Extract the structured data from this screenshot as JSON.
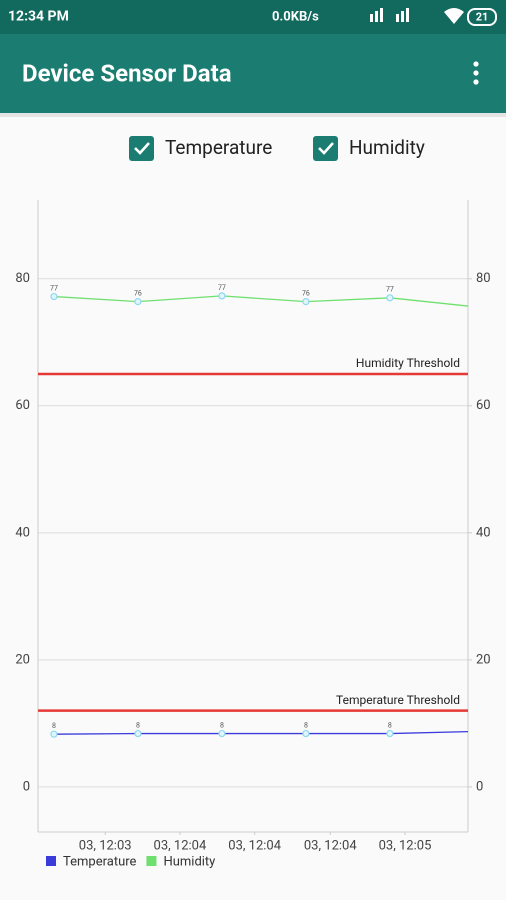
{
  "status_bar": {
    "time": "12:34 PM",
    "speed": "0.0KB/s",
    "battery": "21"
  },
  "app_bar": {
    "title": "Device Sensor Data"
  },
  "filters": [
    {
      "label": "Temperature",
      "checked": true
    },
    {
      "label": "Humidity",
      "checked": true
    }
  ],
  "chart_data": {
    "type": "line",
    "x": [
      0,
      1,
      2,
      3,
      4,
      4.93
    ],
    "xlim": [
      -0.19,
      4.93
    ],
    "xticks": [
      {
        "value": 0.61,
        "label": "03, 12:03"
      },
      {
        "value": 1.5,
        "label": "03, 12:04"
      },
      {
        "value": 2.39,
        "label": "03, 12:04"
      },
      {
        "value": 3.29,
        "label": "03, 12:04"
      },
      {
        "value": 4.18,
        "label": "03, 12:05"
      }
    ],
    "ylim": [
      -7.1,
      92.4
    ],
    "yticks": [
      0,
      20,
      40,
      60,
      80
    ],
    "y2lim": [
      -7.1,
      92.4
    ],
    "y2ticks": [
      0,
      20,
      40,
      60,
      80
    ],
    "grid": true,
    "legend": "bottom-left",
    "series": [
      {
        "name": "Temperature",
        "color": "#3b3bdc",
        "values": [
          8.3,
          8.4,
          8.4,
          8.4,
          8.4,
          8.7
        ],
        "value_labels": [
          "8",
          "8",
          "8",
          "8",
          "8",
          null
        ]
      },
      {
        "name": "Humidity",
        "color": "#6fe06f",
        "values": [
          77.2,
          76.4,
          77.3,
          76.4,
          77.0,
          75.7
        ],
        "value_labels": [
          "77",
          "76",
          "77",
          "76",
          "77",
          null
        ]
      }
    ],
    "reference_lines": [
      {
        "label": "Humidity Threshold",
        "value": 65,
        "color": "#e53935"
      },
      {
        "label": "Temperature Threshold",
        "value": 12,
        "color": "#e53935"
      }
    ]
  }
}
